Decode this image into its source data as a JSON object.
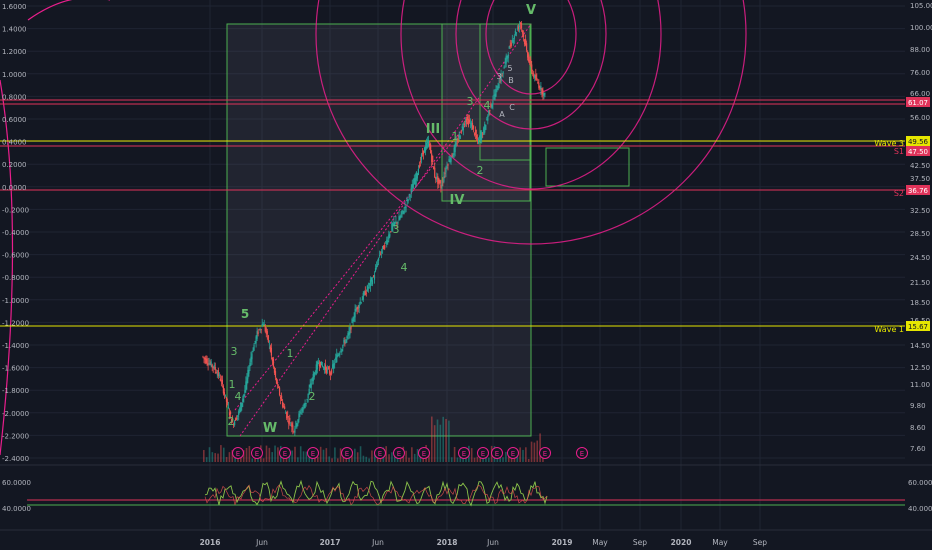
{
  "colors": {
    "background": "#131722",
    "grid": "#1f2433",
    "up": "#26a69a",
    "down": "#ef5350",
    "wave_green": "#4caf50",
    "wave_label": "#66bb6a",
    "fib_pink": "#e91e8c",
    "horizontal_red": "#e0335a",
    "horizontal_yellow": "#e6e600",
    "axis_text": "#b2b5be",
    "rsi_line": "#8bc34a"
  },
  "chart_data": {
    "type": "candlestick",
    "left_axis": {
      "ticks": [
        "1.6000",
        "1.4000",
        "1.2000",
        "1.0000",
        "0.8000",
        "0.6000",
        "0.4000",
        "0.2000",
        "0.0000",
        "-0.2000",
        "-0.4000",
        "-0.6000",
        "-0.8000",
        "-1.0000",
        "-1.2000",
        "-1.4000",
        "-1.6000",
        "-1.8000",
        "-2.0000",
        "-2.2000",
        "-2.4000"
      ],
      "range": [
        -2.4,
        1.6
      ]
    },
    "right_axis": {
      "ticks": [
        "105.00",
        "100.00",
        "88.00",
        "76.00",
        "66.00",
        "56.00",
        "42.50",
        "37.50",
        "32.50",
        "28.50",
        "24.50",
        "21.50",
        "18.50",
        "16.50",
        "14.50",
        "12.50",
        "11.00",
        "9.80",
        "8.60",
        "7.60"
      ]
    },
    "price_labels": [
      {
        "value": "61.07",
        "style": "red"
      },
      {
        "value": "49.56",
        "style": "yellow"
      },
      {
        "value": "47.50",
        "style": "red"
      },
      {
        "value": "36.76",
        "style": "red"
      },
      {
        "value": "15.67",
        "style": "yellow"
      }
    ],
    "level_labels": [
      "Wave 3",
      "S1",
      "S2",
      "Wave 1"
    ],
    "rsi_axis": {
      "ticks": [
        "60.0000",
        "40.0000"
      ],
      "left_ticks": [
        "60.0000",
        "40.0000"
      ]
    },
    "x_ticks": [
      "2016",
      "Jun",
      "2017",
      "Jun",
      "2018",
      "Jun",
      "2019",
      "May",
      "Sep",
      "2020",
      "May",
      "Sep"
    ],
    "wave_labels": [
      "1",
      "2",
      "3",
      "4",
      "5",
      "W",
      "1",
      "2",
      "3",
      "4",
      "III",
      "IV",
      "1",
      "2",
      "3",
      "4",
      "3",
      "5",
      "A",
      "B",
      "C",
      "V"
    ],
    "event_markers": [
      "E",
      "E",
      "E",
      "E",
      "E",
      "E",
      "E",
      "E",
      "E",
      "E",
      "E",
      "E",
      "E",
      "E"
    ],
    "series": [
      {
        "name": "",
        "values": [
          -1.5,
          -1.55,
          -1.6,
          -1.7,
          -1.9,
          -2.1,
          -2.0,
          -1.8,
          -1.5,
          -1.3,
          -1.2,
          -1.4,
          -1.7,
          -1.9,
          -2.05,
          -2.15,
          -2.0,
          -1.9,
          -1.7,
          -1.55,
          -1.6,
          -1.65,
          -1.5,
          -1.4,
          -1.3,
          -1.1,
          -1.0,
          -0.9,
          -0.8,
          -0.6,
          -0.5,
          -0.35,
          -0.3,
          -0.2,
          -0.05,
          0.1,
          0.3,
          0.4,
          0.1,
          0.0,
          0.2,
          0.3,
          0.45,
          0.6,
          0.55,
          0.4,
          0.5,
          0.7,
          0.85,
          1.0,
          1.2,
          1.35,
          1.45,
          1.2,
          1.0,
          0.9,
          0.8
        ]
      }
    ]
  }
}
